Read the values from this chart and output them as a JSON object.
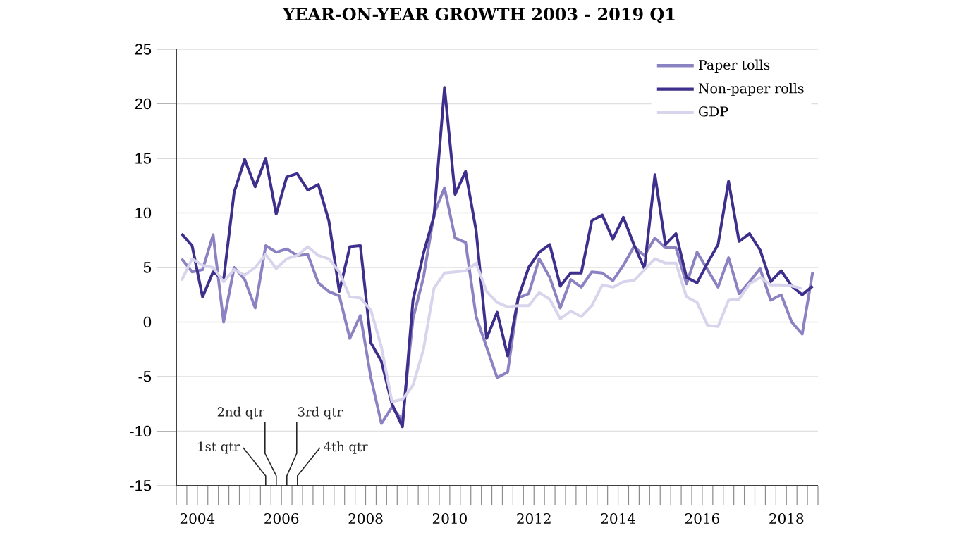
{
  "chart_data": {
    "type": "line",
    "title": "YEAR-ON-YEAR GROWTH 2003 - 2019 Q1",
    "x": [
      2004.125,
      2004.375,
      2004.625,
      2004.875,
      2005.125,
      2005.375,
      2005.625,
      2005.875,
      2006.125,
      2006.375,
      2006.625,
      2006.875,
      2007.125,
      2007.375,
      2007.625,
      2007.875,
      2008.125,
      2008.375,
      2008.625,
      2008.875,
      2009.125,
      2009.375,
      2009.625,
      2009.875,
      2010.125,
      2010.375,
      2010.625,
      2010.875,
      2011.125,
      2011.375,
      2011.625,
      2011.875,
      2012.125,
      2012.375,
      2012.625,
      2012.875,
      2013.125,
      2013.375,
      2013.625,
      2013.875,
      2014.125,
      2014.375,
      2014.625,
      2014.875,
      2015.125,
      2015.375,
      2015.625,
      2015.875,
      2016.125,
      2016.375,
      2016.625,
      2016.875,
      2017.125,
      2017.375,
      2017.625,
      2017.875,
      2018.125,
      2018.375,
      2018.625,
      2018.875,
      2019.125
    ],
    "series": [
      {
        "name": "Paper tolls",
        "color": "#8b82c2",
        "values": [
          5.8,
          4.6,
          4.8,
          8.0,
          0.0,
          5.0,
          3.9,
          1.3,
          7.0,
          6.4,
          6.7,
          6.1,
          6.2,
          3.6,
          2.8,
          2.4,
          -1.5,
          0.6,
          -5.1,
          -9.3,
          -7.8,
          -9.0,
          0.3,
          4.1,
          9.9,
          12.3,
          7.7,
          7.3,
          0.5,
          -2.3,
          -5.1,
          -4.6,
          2.2,
          2.6,
          5.8,
          4.1,
          1.3,
          3.9,
          3.2,
          4.6,
          4.5,
          3.8,
          5.2,
          6.9,
          6.1,
          7.7,
          6.8,
          6.8,
          3.5,
          6.4,
          4.8,
          3.2,
          5.9,
          2.6,
          3.7,
          4.9,
          2.0,
          2.5,
          0.0,
          -1.1,
          4.6
        ]
      },
      {
        "name": "Non-paper rolls",
        "color": "#3e2f8c",
        "values": [
          8.1,
          7.0,
          2.3,
          4.6,
          3.9,
          11.9,
          14.9,
          12.4,
          15.0,
          9.9,
          13.3,
          13.6,
          12.1,
          12.6,
          9.3,
          2.8,
          6.9,
          7.0,
          -1.9,
          -3.6,
          -7.5,
          -9.6,
          2.0,
          6.3,
          9.7,
          21.5,
          11.7,
          13.8,
          8.4,
          -1.5,
          0.9,
          -3.1,
          2.2,
          5.0,
          6.4,
          7.1,
          3.3,
          4.5,
          4.5,
          9.3,
          9.8,
          7.6,
          9.6,
          7.1,
          4.9,
          13.5,
          7.1,
          8.1,
          4.1,
          3.6,
          5.4,
          7.1,
          12.9,
          7.4,
          8.1,
          6.6,
          3.7,
          4.7,
          3.3,
          2.5,
          3.3
        ]
      },
      {
        "name": "GDP",
        "color": "#d8d4ec",
        "values": [
          3.8,
          5.8,
          5.2,
          5.0,
          3.7,
          4.8,
          4.3,
          5.0,
          6.2,
          4.9,
          5.8,
          6.1,
          6.9,
          6.1,
          5.8,
          4.6,
          2.3,
          2.2,
          1.1,
          -2.3,
          -7.3,
          -7.1,
          -5.8,
          -2.5,
          3.1,
          4.5,
          4.6,
          4.7,
          5.4,
          2.8,
          1.8,
          1.4,
          1.5,
          1.5,
          2.7,
          2.1,
          0.3,
          1.0,
          0.5,
          1.5,
          3.4,
          3.2,
          3.7,
          3.8,
          4.8,
          5.8,
          5.4,
          5.4,
          2.3,
          1.8,
          -0.3,
          -0.4,
          2.0,
          2.1,
          3.5,
          4.1,
          3.4,
          3.4,
          3.3,
          3.1,
          null
        ]
      }
    ],
    "xlim": [
      2004,
      2019.25
    ],
    "xticks": [
      {
        "value": 2004,
        "label": null
      },
      {
        "value": 2004.25,
        "label": null
      },
      {
        "value": 2004.5,
        "label": "2004"
      },
      {
        "value": 2004.75,
        "label": null
      },
      {
        "value": 2005,
        "label": null
      },
      {
        "value": 2005.25,
        "label": null
      },
      {
        "value": 2005.5,
        "label": null
      },
      {
        "value": 2005.75,
        "label": null
      },
      {
        "value": 2006,
        "label": null
      },
      {
        "value": 2006.25,
        "label": null
      },
      {
        "value": 2006.5,
        "label": "2006"
      },
      {
        "value": 2006.75,
        "label": null
      },
      {
        "value": 2007,
        "label": null
      },
      {
        "value": 2007.25,
        "label": null
      },
      {
        "value": 2007.5,
        "label": null
      },
      {
        "value": 2007.75,
        "label": null
      },
      {
        "value": 2008,
        "label": null
      },
      {
        "value": 2008.25,
        "label": null
      },
      {
        "value": 2008.5,
        "label": "2008"
      },
      {
        "value": 2008.75,
        "label": null
      },
      {
        "value": 2009,
        "label": null
      },
      {
        "value": 2009.25,
        "label": null
      },
      {
        "value": 2009.5,
        "label": null
      },
      {
        "value": 2009.75,
        "label": null
      },
      {
        "value": 2010,
        "label": null
      },
      {
        "value": 2010.25,
        "label": null
      },
      {
        "value": 2010.5,
        "label": "2010"
      },
      {
        "value": 2010.75,
        "label": null
      },
      {
        "value": 2011,
        "label": null
      },
      {
        "value": 2011.25,
        "label": null
      },
      {
        "value": 2011.5,
        "label": null
      },
      {
        "value": 2011.75,
        "label": null
      },
      {
        "value": 2012,
        "label": null
      },
      {
        "value": 2012.25,
        "label": null
      },
      {
        "value": 2012.5,
        "label": "2012"
      },
      {
        "value": 2012.75,
        "label": null
      },
      {
        "value": 2013,
        "label": null
      },
      {
        "value": 2013.25,
        "label": null
      },
      {
        "value": 2013.5,
        "label": null
      },
      {
        "value": 2013.75,
        "label": null
      },
      {
        "value": 2014,
        "label": null
      },
      {
        "value": 2014.25,
        "label": null
      },
      {
        "value": 2014.5,
        "label": "2014"
      },
      {
        "value": 2014.75,
        "label": null
      },
      {
        "value": 2015,
        "label": null
      },
      {
        "value": 2015.25,
        "label": null
      },
      {
        "value": 2015.5,
        "label": null
      },
      {
        "value": 2015.75,
        "label": null
      },
      {
        "value": 2016,
        "label": null
      },
      {
        "value": 2016.25,
        "label": null
      },
      {
        "value": 2016.5,
        "label": "2016"
      },
      {
        "value": 2016.75,
        "label": null
      },
      {
        "value": 2017,
        "label": null
      },
      {
        "value": 2017.25,
        "label": null
      },
      {
        "value": 2017.5,
        "label": null
      },
      {
        "value": 2017.75,
        "label": null
      },
      {
        "value": 2018,
        "label": null
      },
      {
        "value": 2018.25,
        "label": null
      },
      {
        "value": 2018.5,
        "label": "2018"
      },
      {
        "value": 2018.75,
        "label": null
      },
      {
        "value": 2019,
        "label": null
      },
      {
        "value": 2019.25,
        "label": null
      }
    ],
    "ylim": [
      -15,
      25
    ],
    "yticks": [
      -15,
      -10,
      -5,
      0,
      5,
      10,
      15,
      20,
      25
    ],
    "grid": "y",
    "legend": "top right",
    "marker": "none",
    "line_style": "solid",
    "annotations": [
      "1st qtr",
      "2nd qtr",
      "3rd qtr",
      "4th qtr"
    ]
  }
}
